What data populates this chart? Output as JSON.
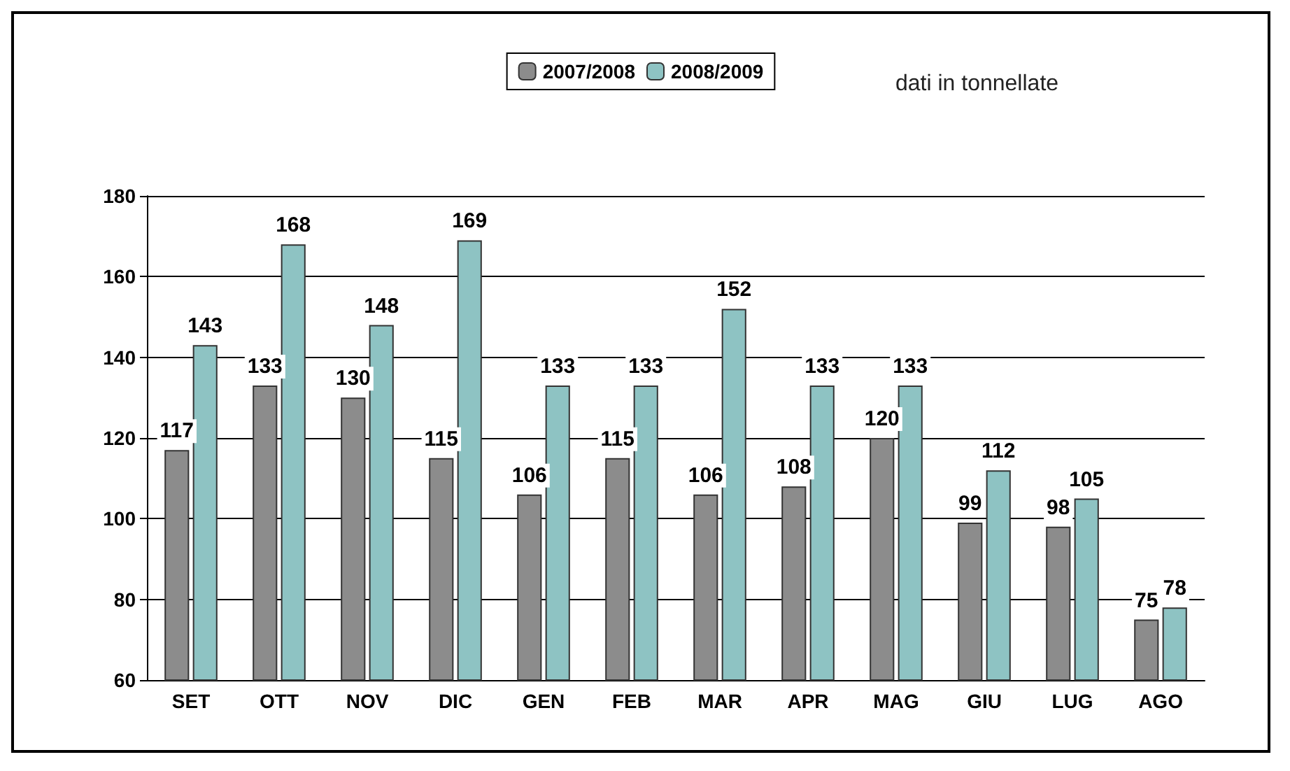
{
  "chart_data": {
    "type": "bar",
    "categories": [
      "SET",
      "OTT",
      "NOV",
      "DIC",
      "GEN",
      "FEB",
      "MAR",
      "APR",
      "MAG",
      "GIU",
      "LUG",
      "AGO"
    ],
    "series": [
      {
        "name": "2007/2008",
        "color": "#8c8c8c",
        "values": [
          117,
          133,
          130,
          115,
          106,
          115,
          106,
          108,
          120,
          99,
          98,
          75
        ]
      },
      {
        "name": "2008/2009",
        "color": "#8ec3c3",
        "values": [
          143,
          168,
          148,
          169,
          133,
          133,
          152,
          133,
          133,
          112,
          105,
          78
        ]
      }
    ],
    "ylim": [
      60,
      180
    ],
    "yticks": [
      60,
      80,
      100,
      120,
      140,
      160,
      180
    ],
    "grid": "y",
    "legend": "top",
    "data_labels": true,
    "annotations": [
      "dati in tonnellate"
    ]
  }
}
